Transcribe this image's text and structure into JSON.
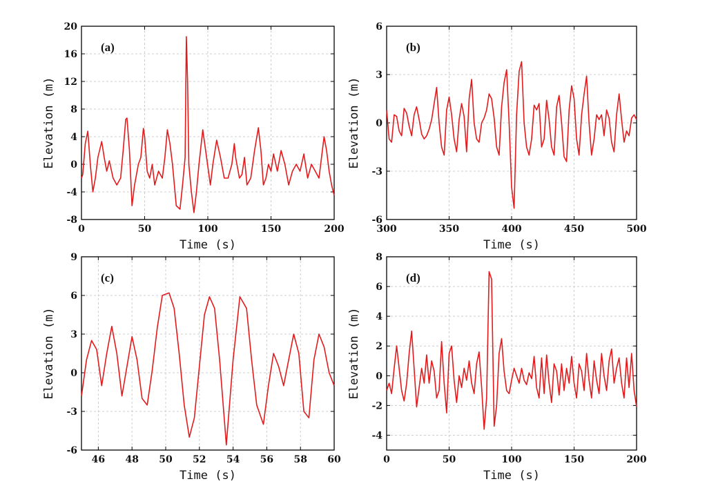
{
  "style": {
    "line_color": "#e31a1c"
  },
  "chart_data": [
    {
      "type": "line",
      "panel_label": "(a)",
      "xlabel": "Time (s)",
      "ylabel": "Elevation (m)",
      "xlim": [
        0,
        200
      ],
      "ylim": [
        -8,
        20
      ],
      "xticks": [
        0,
        50,
        100,
        150,
        200
      ],
      "yticks": [
        -8,
        -4,
        0,
        4,
        8,
        12,
        16,
        20
      ],
      "grid": true,
      "series": [
        {
          "x": [
            0,
            1,
            3,
            5,
            7,
            9,
            11,
            13,
            16,
            18,
            20,
            22,
            25,
            28,
            31,
            33,
            35,
            36,
            38,
            40,
            42,
            45,
            47,
            49,
            50,
            52,
            54,
            56,
            58,
            61,
            64,
            66,
            68,
            70,
            72,
            75,
            78,
            80,
            82,
            83,
            84,
            85,
            87,
            89,
            91,
            93,
            96,
            99,
            102,
            104,
            107,
            110,
            113,
            116,
            119,
            121,
            122,
            123,
            125,
            127,
            129,
            131,
            134,
            137,
            140,
            142,
            144,
            146,
            148,
            150,
            152,
            155,
            158,
            161,
            164,
            167,
            170,
            173,
            176,
            179,
            182,
            185,
            188,
            190,
            192,
            194,
            196,
            198,
            200
          ],
          "y": [
            -2,
            -1.5,
            3,
            4.8,
            0,
            -4,
            -2,
            1,
            3.3,
            1,
            -1,
            0.5,
            -2,
            -3,
            -2,
            2,
            6.5,
            6.7,
            2,
            -6,
            -3,
            0,
            1,
            5.2,
            4,
            -1,
            -2,
            0,
            -3,
            -1,
            -2,
            1,
            5,
            3,
            0,
            -6,
            -6.5,
            -3,
            1,
            18.5,
            12,
            0,
            -4,
            -7,
            -4,
            0,
            5,
            1,
            -3,
            0,
            3.5,
            1,
            -2,
            -2,
            0,
            3,
            1,
            0,
            -2,
            -1.5,
            1,
            -3,
            -2,
            2,
            5.3,
            2,
            -3,
            -2,
            0,
            -1,
            1.5,
            -1,
            2,
            0,
            -3,
            -1,
            0,
            -1,
            1.5,
            -2,
            0,
            -1,
            -2,
            1,
            4,
            2,
            -1,
            -3,
            -4.5
          ]
        }
      ]
    },
    {
      "type": "line",
      "panel_label": "(b)",
      "xlabel": "Time (s)",
      "ylabel": "Elevation (m)",
      "xlim": [
        300,
        500
      ],
      "ylim": [
        -6,
        6
      ],
      "xticks": [
        300,
        350,
        400,
        450,
        500
      ],
      "yticks": [
        -6,
        -3,
        0,
        3,
        6
      ],
      "grid": true,
      "series": [
        {
          "x": [
            300,
            302,
            304,
            306,
            308,
            310,
            312,
            314,
            316,
            318,
            320,
            322,
            324,
            326,
            328,
            330,
            332,
            334,
            336,
            338,
            340,
            342,
            344,
            346,
            348,
            350,
            352,
            354,
            356,
            358,
            360,
            362,
            364,
            366,
            368,
            370,
            372,
            374,
            376,
            378,
            380,
            382,
            384,
            386,
            388,
            390,
            392,
            394,
            396,
            398,
            400,
            402,
            404,
            406,
            408,
            410,
            412,
            414,
            416,
            418,
            420,
            422,
            424,
            426,
            428,
            430,
            432,
            434,
            436,
            438,
            440,
            442,
            444,
            446,
            448,
            450,
            452,
            454,
            456,
            458,
            460,
            462,
            464,
            466,
            468,
            470,
            472,
            474,
            476,
            478,
            480,
            482,
            484,
            486,
            488,
            490,
            492,
            494,
            496,
            498,
            500
          ],
          "y": [
            0.8,
            -1,
            -1.2,
            0.5,
            0.4,
            -0.5,
            -0.8,
            0.9,
            0.6,
            -0.2,
            -0.8,
            0.5,
            1,
            0.2,
            -0.7,
            -1,
            -0.8,
            -0.4,
            0.2,
            1.2,
            2.2,
            0,
            -1.5,
            -2,
            0.8,
            1.6,
            0.5,
            -1,
            -1.8,
            0.2,
            1.2,
            0.4,
            -1.8,
            1.5,
            2.7,
            0,
            -1,
            -1.2,
            0,
            0.3,
            0.8,
            1.8,
            1.5,
            0.3,
            -1.5,
            -2,
            1,
            2.5,
            3.3,
            0,
            -4,
            -5.3,
            0.5,
            3.2,
            3.8,
            0,
            -1.5,
            -2,
            -1,
            1.1,
            0.8,
            1.2,
            -1.5,
            -1,
            1.4,
            0.2,
            -1.5,
            -2,
            1,
            1.7,
            0,
            -2.1,
            -2.4,
            0.8,
            2.3,
            1.5,
            -1,
            -2,
            0.5,
            1.8,
            2.9,
            0,
            -2,
            -1,
            0.5,
            0.2,
            0.5,
            -0.8,
            0.8,
            0.3,
            -1.2,
            -1.8,
            0.5,
            1.8,
            0.2,
            -1.2,
            -0.5,
            -0.8,
            0.3,
            0.5,
            0.2
          ]
        }
      ]
    },
    {
      "type": "line",
      "panel_label": "(c)",
      "xlabel": "Time (s)",
      "ylabel": "Elevation (m)",
      "xlim": [
        45,
        60
      ],
      "ylim": [
        -6,
        9
      ],
      "xticks": [
        46,
        48,
        50,
        52,
        54,
        56,
        58,
        60
      ],
      "yticks": [
        -6,
        -3,
        0,
        3,
        6,
        9
      ],
      "grid": true,
      "series": [
        {
          "x": [
            45,
            45.3,
            45.6,
            45.9,
            46.2,
            46.5,
            46.8,
            47.1,
            47.4,
            47.7,
            48,
            48.3,
            48.6,
            48.9,
            49.2,
            49.5,
            49.8,
            50.2,
            50.5,
            50.8,
            51.1,
            51.4,
            51.7,
            52,
            52.3,
            52.6,
            52.9,
            53.2,
            53.6,
            54,
            54.4,
            54.8,
            55.1,
            55.4,
            55.8,
            56.1,
            56.4,
            56.7,
            57,
            57.3,
            57.6,
            57.9,
            58.2,
            58.5,
            58.8,
            59.1,
            59.4,
            59.7,
            60
          ],
          "y": [
            -1.8,
            1,
            2.5,
            1.8,
            -1,
            1.5,
            3.6,
            1.5,
            -1.8,
            0.5,
            2.8,
            1,
            -2,
            -2.5,
            0.2,
            3.5,
            6,
            6.2,
            5,
            1.5,
            -2.5,
            -5,
            -3.5,
            0.5,
            4.5,
            5.9,
            5,
            1,
            -5.6,
            1,
            5.9,
            5,
            1,
            -2.5,
            -4,
            -1,
            1.5,
            0.5,
            -1,
            1,
            3,
            1.5,
            -3,
            -3.5,
            1,
            3,
            2,
            0,
            -1
          ]
        }
      ]
    },
    {
      "type": "line",
      "panel_label": "(d)",
      "xlabel": "Time (s)",
      "ylabel": "Elevation (m)",
      "xlim": [
        0,
        200
      ],
      "ylim": [
        -5,
        8
      ],
      "xticks": [
        0,
        50,
        100,
        150,
        200
      ],
      "yticks": [
        -4,
        -2,
        0,
        2,
        4,
        6,
        8
      ],
      "grid": true,
      "series": [
        {
          "x": [
            0,
            2,
            4,
            6,
            8,
            10,
            12,
            14,
            16,
            18,
            20,
            22,
            24,
            26,
            28,
            30,
            32,
            34,
            36,
            38,
            40,
            42,
            44,
            46,
            48,
            50,
            52,
            54,
            56,
            58,
            60,
            62,
            64,
            66,
            68,
            70,
            72,
            74,
            76,
            78,
            80,
            82,
            84,
            86,
            88,
            90,
            92,
            94,
            96,
            98,
            100,
            102,
            104,
            106,
            108,
            110,
            112,
            114,
            116,
            118,
            120,
            122,
            124,
            126,
            128,
            130,
            132,
            134,
            136,
            138,
            140,
            142,
            144,
            146,
            148,
            150,
            152,
            154,
            156,
            158,
            160,
            162,
            164,
            166,
            168,
            170,
            172,
            174,
            176,
            178,
            180,
            182,
            184,
            186,
            188,
            190,
            192,
            194,
            196,
            198,
            200
          ],
          "y": [
            -1,
            -0.5,
            -1.2,
            0.5,
            2,
            0.5,
            -1,
            -1.7,
            -0.5,
            1.5,
            3,
            0.5,
            -2.1,
            -0.8,
            0.5,
            -0.5,
            1.4,
            -0.5,
            1,
            0.3,
            -1.5,
            -1,
            2.3,
            -0.5,
            -2.5,
            1.5,
            2,
            -0.3,
            -1.8,
            0,
            -0.8,
            0.5,
            -0.3,
            1,
            -0.5,
            -1.2,
            0.8,
            1.6,
            -0.8,
            -3.6,
            -1.5,
            7,
            6.5,
            -3.4,
            -2,
            1.5,
            2.5,
            0.3,
            -1,
            -1.2,
            -0.3,
            0.5,
            0,
            -0.5,
            0.5,
            -0.3,
            -0.6,
            0.2,
            -0.2,
            1.3,
            -0.8,
            -1.5,
            1.2,
            -1.2,
            1.4,
            -0.5,
            -1.8,
            0.8,
            0.3,
            -1.3,
            0.8,
            -1,
            0.5,
            -0.5,
            1.3,
            -0.5,
            -1.5,
            0.8,
            0.3,
            -1,
            1.5,
            -0.3,
            -1.5,
            1,
            -0.3,
            -1.2,
            1.5,
            0,
            -1,
            1,
            1.8,
            -0.5,
            0.5,
            1.2,
            -0.5,
            -1.5,
            1.2,
            -0.8,
            1.5,
            -1,
            -2.1
          ]
        }
      ]
    }
  ]
}
